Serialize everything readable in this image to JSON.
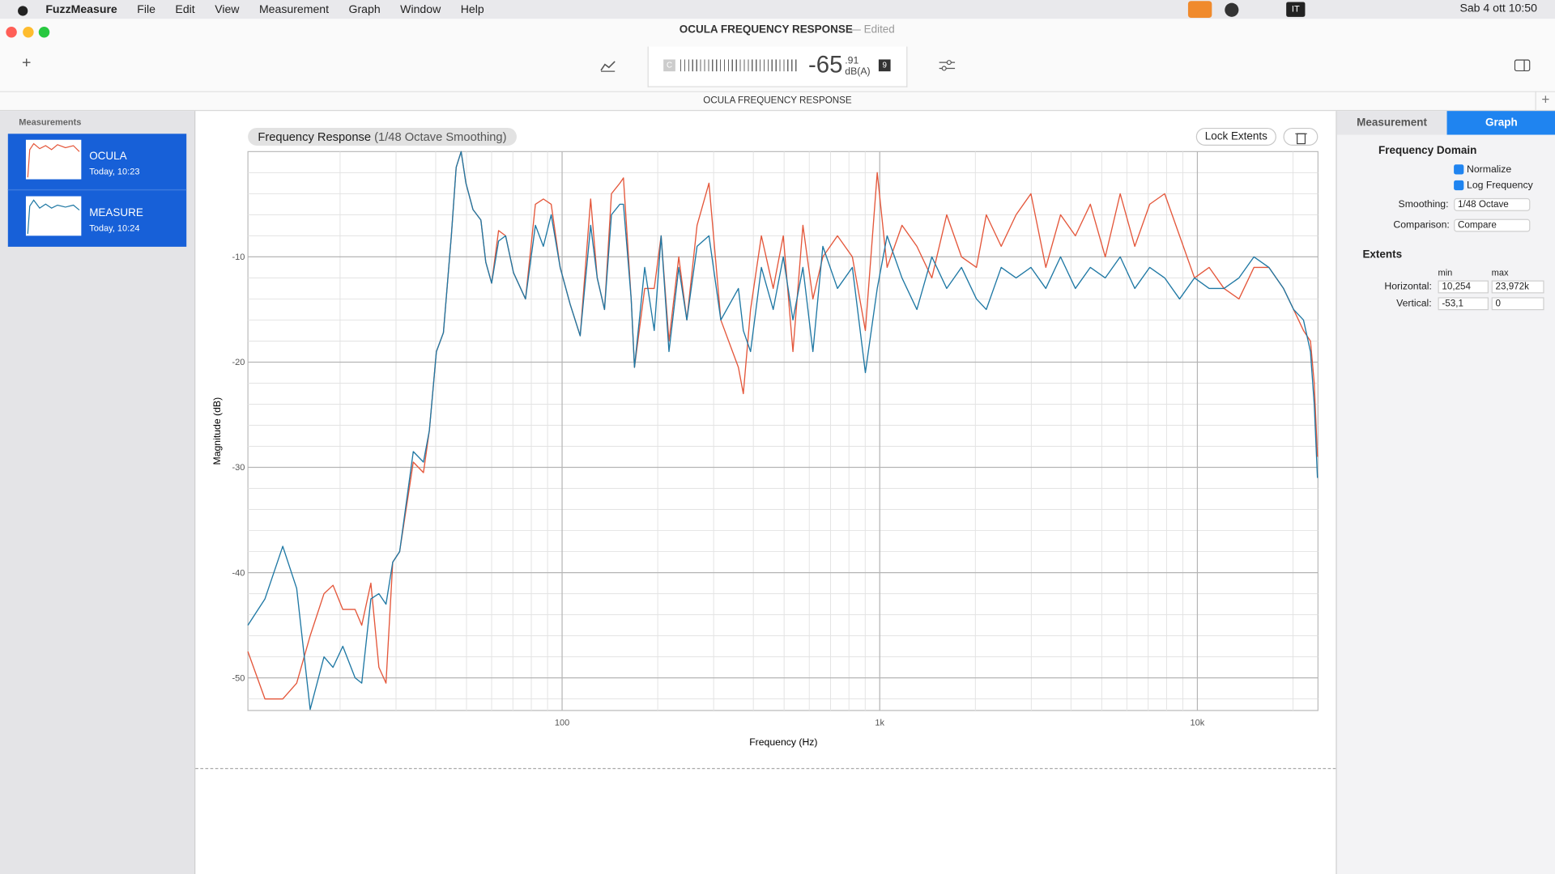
{
  "menubar": {
    "app": "FuzzMeasure",
    "menus": [
      "File",
      "Edit",
      "View",
      "Measurement",
      "Graph",
      "Window",
      "Help"
    ],
    "input": "IT",
    "clock": "Sab 4 ott 10:50"
  },
  "toolbar": {
    "title": "OCULA FREQUENCY RESPONSE",
    "status": "— Edited",
    "meter": {
      "weighting": "C",
      "level": "-65",
      "decimals": ".91",
      "unit": "dB(A)",
      "badge": "9"
    },
    "tab": "OCULA FREQUENCY RESPONSE"
  },
  "sidebar": {
    "heading": "Measurements",
    "items": [
      {
        "time": "Today, 10:23"
      },
      {
        "time": "Today, 10:24"
      }
    ]
  },
  "graph": {
    "lock": "Lock Extents"
  },
  "inspector": {
    "tabs": [
      "Measurement",
      "Graph"
    ],
    "section1": "Frequency Domain",
    "checks": [
      "Normalize",
      "Log Frequency"
    ],
    "smoothing_label": "Smoothing:",
    "smoothing": "1/48 Octave",
    "comparison_label": "Comparison:",
    "comparison": "Compare",
    "section2": "Extents",
    "col_min": "min",
    "col_max": "max",
    "horizontal_label": "Horizontal:",
    "h_min": "10,254",
    "h_max": "23,972k",
    "vertical_label": "Vertical:",
    "v_min": "-53,1",
    "v_max": "0"
  },
  "chart_data": {
    "type": "line",
    "title": "Frequency Response",
    "subtitle": "(1/48 Octave Smoothing)",
    "x_label": "Frequency (Hz)",
    "y_label": "Magnitude (dB)",
    "log_x": true,
    "grid": true,
    "xlim": [
      10.254,
      23972
    ],
    "ylim": [
      -53.1,
      0
    ],
    "xticks": [
      100,
      {
        "value": 1000,
        "label": "1k"
      },
      {
        "value": 10000,
        "label": "10k"
      }
    ],
    "x_minor_ticks": [
      20,
      30,
      40,
      50,
      60,
      70,
      80,
      90,
      200,
      300,
      400,
      500,
      600,
      700,
      800,
      900,
      2000,
      3000,
      4000,
      5000,
      6000,
      7000,
      8000,
      9000,
      20000
    ],
    "yticks": [
      -10,
      -20,
      -30,
      -40,
      -50
    ],
    "y_minor_ticks": [
      -2,
      -4,
      -6,
      -8,
      -12,
      -14,
      -16,
      -18,
      -22,
      -24,
      -26,
      -28,
      -32,
      -34,
      -36,
      -38,
      -42,
      -44,
      -46,
      -48,
      -52
    ],
    "x": [
      10.25,
      11.6,
      13.2,
      14.6,
      16.1,
      17.8,
      19.0,
      20.4,
      22.3,
      23.4,
      25.0,
      26.5,
      27.9,
      29.3,
      30.8,
      34.0,
      36.6,
      38.2,
      40.2,
      42.3,
      44.8,
      46.4,
      48.1,
      49.8,
      52.4,
      55.5,
      57.5,
      60.0,
      63.1,
      66.4,
      70.3,
      76.7,
      82.4,
      87.3,
      92.4,
      98.6,
      106,
      114,
      123,
      129,
      136,
      143,
      152,
      156,
      165,
      169,
      182,
      195,
      205,
      217,
      233,
      247,
      266,
      290,
      316,
      359,
      372,
      392,
      424,
      462,
      497,
      533,
      573,
      616,
      662,
      736,
      820,
      901,
      982,
      1055,
      1175,
      1309,
      1459,
      1625,
      1809,
      2016,
      2165,
      2412,
      2687,
      2992,
      3333,
      3709,
      4130,
      4603,
      5129,
      5715,
      6353,
      7079,
      7889,
      8790,
      9795,
      10890,
      12130,
      13520,
      15070,
      16790,
      18670,
      20090,
      21580,
      22700,
      23330,
      23880
    ],
    "series": [
      {
        "name": "OCULA",
        "color": "#e4573b",
        "values": [
          -47.5,
          -52,
          -52,
          -50.5,
          -46,
          -42,
          -41.2,
          -43.5,
          -43.5,
          -45,
          -41,
          -49,
          -50.5,
          -39,
          -38,
          -29.5,
          -30.5,
          -26.5,
          -19,
          -17.2,
          -8,
          -1.5,
          0,
          -3,
          -5.5,
          -6.5,
          -10.5,
          -12.5,
          -7.5,
          -8,
          -11.5,
          -14,
          -5,
          -4.5,
          -5,
          -11,
          -14.5,
          -17.5,
          -4.5,
          -12,
          -15,
          -4,
          -3,
          -2.5,
          -14,
          -20.5,
          -13,
          -13,
          -8,
          -18,
          -10,
          -16,
          -7,
          -3,
          -16,
          -20.5,
          -23,
          -15,
          -8,
          -13,
          -8,
          -19,
          -7,
          -14,
          -10,
          -8,
          -10,
          -17,
          -2,
          -11,
          -7,
          -9,
          -12,
          -6,
          -10,
          -11,
          -6,
          -9,
          -6,
          -4,
          -11,
          -6,
          -8,
          -5,
          -10,
          -4,
          -9,
          -5,
          -4,
          -8,
          -12,
          -11,
          -13,
          -14,
          -11,
          -11,
          -13,
          -15,
          -17,
          -18,
          -22,
          -29
        ]
      },
      {
        "name": "MEASURE",
        "color": "#1f78a4",
        "values": [
          -45,
          -42.5,
          -37.5,
          -41.5,
          -53,
          -48,
          -49,
          -47,
          -50,
          -50.5,
          -42.5,
          -42,
          -43,
          -39,
          -38,
          -28.5,
          -29.5,
          -26.5,
          -19,
          -17.2,
          -8,
          -1.5,
          0,
          -3,
          -5.5,
          -6.5,
          -10.5,
          -12.5,
          -8.5,
          -8,
          -11.5,
          -14,
          -7,
          -9,
          -6,
          -11,
          -14.5,
          -17.5,
          -7,
          -12,
          -15,
          -6,
          -5,
          -5,
          -14,
          -20.5,
          -11,
          -17,
          -8,
          -19,
          -11,
          -16,
          -9,
          -8,
          -16,
          -13,
          -17,
          -19,
          -11,
          -15,
          -10,
          -16,
          -11,
          -19,
          -9,
          -13,
          -11,
          -21,
          -13,
          -8,
          -12,
          -15,
          -10,
          -13,
          -11,
          -14,
          -15,
          -11,
          -12,
          -11,
          -13,
          -10,
          -13,
          -11,
          -12,
          -10,
          -13,
          -11,
          -12,
          -14,
          -12,
          -13,
          -13,
          -12,
          -10,
          -11,
          -13,
          -15,
          -16,
          -19,
          -24,
          -31
        ]
      }
    ]
  }
}
